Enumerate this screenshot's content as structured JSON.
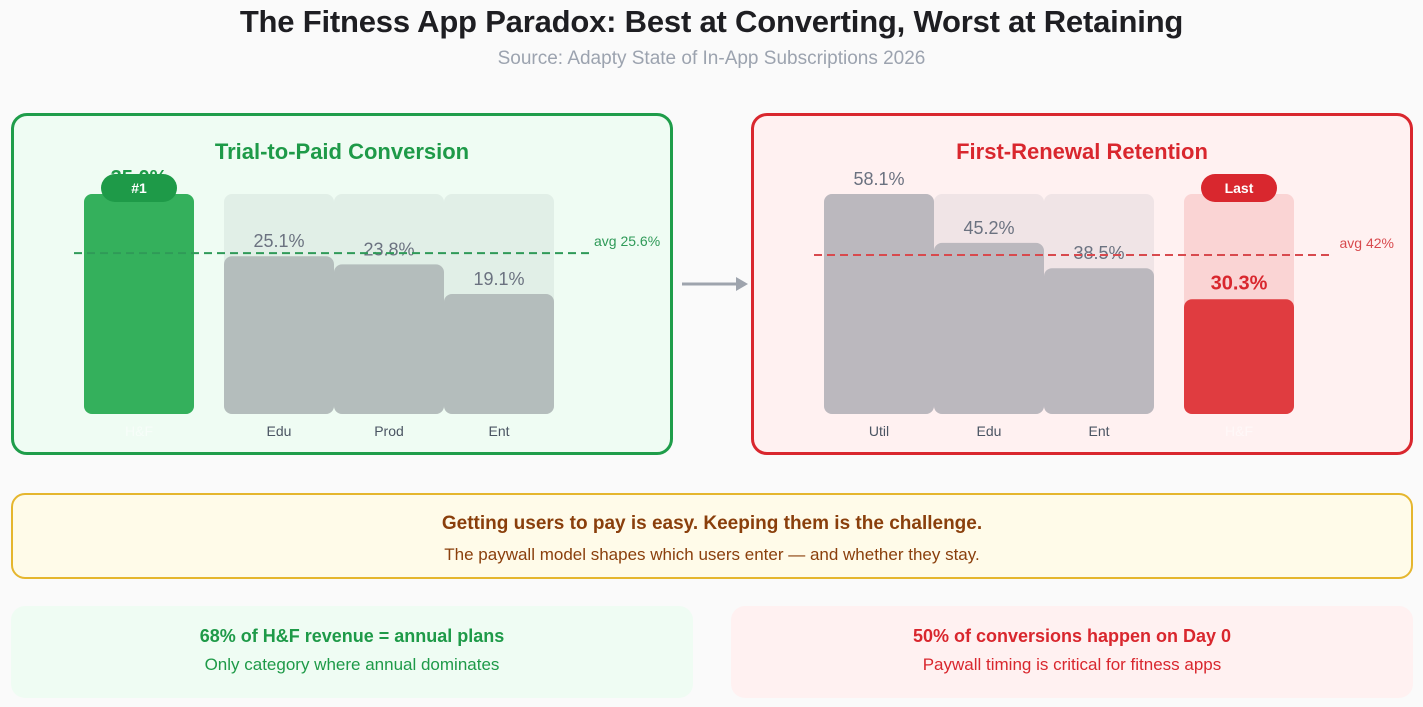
{
  "title": "The Fitness App Paradox: Best at Converting, Worst at Retaining",
  "subtitle": "Source: Adapty State of In-App Subscriptions 2026",
  "chart_data": [
    {
      "type": "bar",
      "title": "Trial-to-Paid Conversion",
      "categories": [
        "H&F",
        "Edu",
        "Prod",
        "Ent"
      ],
      "values": [
        35.0,
        25.1,
        23.8,
        19.1
      ],
      "value_labels": [
        "35.0%",
        "25.1%",
        "23.8%",
        "19.1%"
      ],
      "ylim": [
        0,
        35.0
      ],
      "highlight_index": 0,
      "badge": "#1",
      "average": 25.6,
      "average_label": "avg 25.6%",
      "colors": {
        "highlight": "#34b05c",
        "highlight_track": "#cdeed7",
        "bar": "#b4bdbc",
        "track": "#e1efe7",
        "accent": "#1e9a48",
        "avg_line": "#2f9a58"
      }
    },
    {
      "type": "bar",
      "title": "First-Renewal Retention",
      "categories": [
        "Util",
        "Edu",
        "Ent",
        "H&F"
      ],
      "values": [
        58.1,
        45.2,
        38.5,
        30.3
      ],
      "value_labels": [
        "58.1%",
        "45.2%",
        "38.5%",
        "30.3%"
      ],
      "ylim": [
        0,
        58.1
      ],
      "highlight_index": 3,
      "badge": "Last",
      "average": 42,
      "average_label": "avg 42%",
      "colors": {
        "highlight": "#e03c40",
        "highlight_track": "#fad4d4",
        "bar": "#bbb8be",
        "track": "#f0e4e6",
        "accent": "#d9272e",
        "avg_line": "#d84a4e"
      }
    }
  ],
  "message": {
    "headline": "Getting users to pay is easy. Keeping them is the challenge.",
    "subline": "The paywall model shapes which users enter — and whether they stay."
  },
  "stats": [
    {
      "headline": "68% of H&F revenue = annual plans",
      "subline": "Only category where annual dominates"
    },
    {
      "headline": "50% of conversions happen on Day 0",
      "subline": "Paywall timing is critical for fitness apps"
    }
  ],
  "connector_color": "#9ea4ad"
}
